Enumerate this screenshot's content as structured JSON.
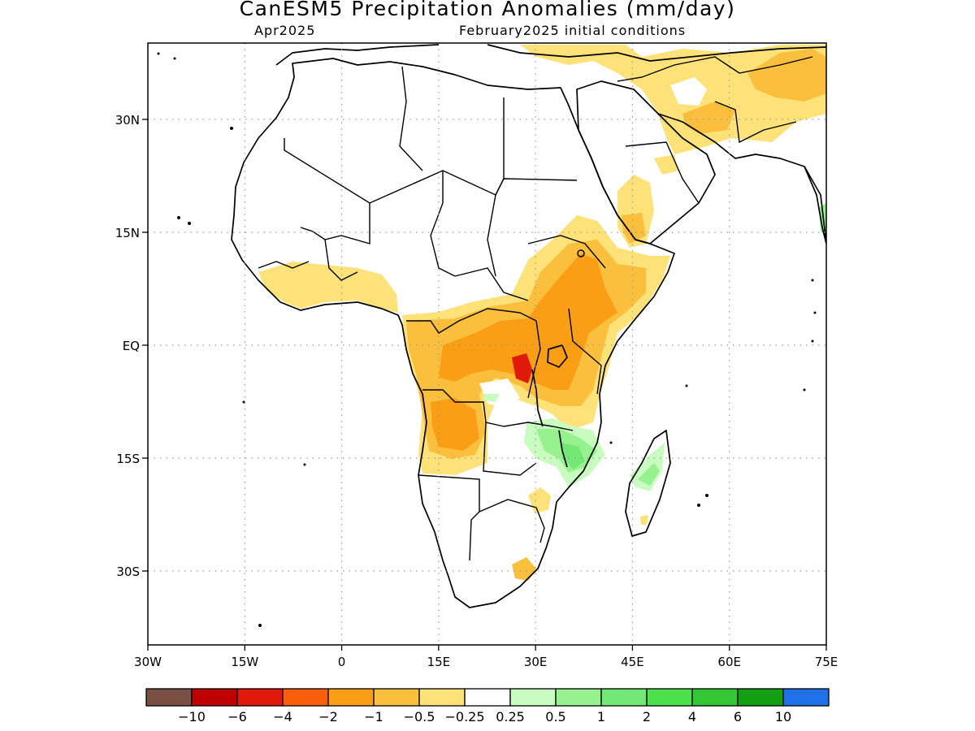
{
  "title": "CanESM5 Precipitation Anomalies (mm/day)",
  "valid_month": "Apr2025",
  "init_conditions": "February2025 initial conditions",
  "map": {
    "lon_ticks": [
      "30W",
      "15W",
      "0",
      "15E",
      "30E",
      "45E",
      "60E",
      "75E"
    ],
    "lat_ticks": [
      "30N",
      "15N",
      "EQ",
      "15S",
      "30S"
    ]
  },
  "colorbar": {
    "colors": [
      "#7a4f44",
      "#bf0000",
      "#e01a0a",
      "#f95e0b",
      "#fa9e15",
      "#fbbf3e",
      "#fde27a",
      "#ffffff",
      "#c8fcc0",
      "#96f28e",
      "#74e874",
      "#4ce04c",
      "#34c634",
      "#12a012",
      "#2070e8"
    ],
    "labels": [
      "−10",
      "−6",
      "−4",
      "−2",
      "−1",
      "−0.5",
      "−0.25",
      "0.25",
      "0.5",
      "1",
      "2",
      "4",
      "6",
      "10"
    ]
  },
  "colors": {
    "dry_light": "#fde27a",
    "dry_medium": "#fbbf3e",
    "dry_strong": "#fa9e15",
    "dry_very_strong": "#e01a0a",
    "wet_light": "#c8fcc0",
    "wet_medium": "#96f28e",
    "wet_strong": "#74e874"
  }
}
